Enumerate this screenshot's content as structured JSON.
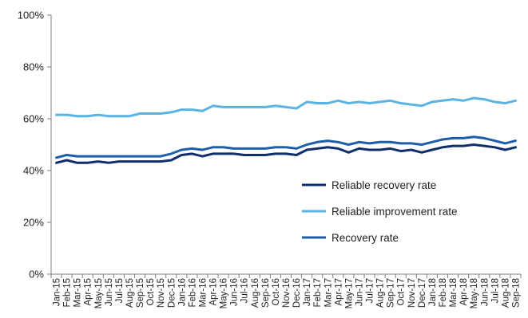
{
  "chart_data": {
    "type": "line",
    "title": "",
    "xlabel": "",
    "ylabel": "",
    "ylim": [
      0,
      100
    ],
    "y_ticks": [
      "0%",
      "20%",
      "40%",
      "60%",
      "80%",
      "100%"
    ],
    "y_tick_values": [
      0,
      20,
      40,
      60,
      80,
      100
    ],
    "grid": false,
    "legend_position": "right-center",
    "categories": [
      "Jan-15",
      "Feb-15",
      "Mar-15",
      "Apr-15",
      "May-15",
      "Jun-15",
      "Jul-15",
      "Aug-15",
      "Sep-15",
      "Oct-15",
      "Nov-15",
      "Dec-15",
      "Jan-16",
      "Feb-16",
      "Mar-16",
      "Apr-16",
      "May-16",
      "Jun-16",
      "Jul-16",
      "Aug-16",
      "Sep-16",
      "Oct-16",
      "Nov-16",
      "Dec-16",
      "Jan-17",
      "Feb-17",
      "Mar-17",
      "Apr-17",
      "May-17",
      "Jun-17",
      "Jul-17",
      "Aug-17",
      "Sep-17",
      "Oct-17",
      "Nov-17",
      "Dec-17",
      "Jan-18",
      "Feb-18",
      "Mar-18",
      "Apr-18",
      "May-18",
      "Jun-18",
      "Jul-18",
      "Aug-18",
      "Sep-18"
    ],
    "series": [
      {
        "name": "Reliable recovery rate",
        "color": "#0e2f6b",
        "values": [
          43,
          44,
          43,
          43,
          43.5,
          43,
          43.5,
          43.5,
          43.5,
          43.5,
          43.5,
          44,
          46,
          46.5,
          45.5,
          46.5,
          46.5,
          46.5,
          46,
          46,
          46,
          46.5,
          46.5,
          46,
          48,
          48.5,
          49,
          48.5,
          47,
          48.5,
          48,
          48,
          48.5,
          47.5,
          48,
          47,
          48,
          49,
          49.5,
          49.5,
          50,
          49.5,
          49,
          48,
          49
        ]
      },
      {
        "name": "Reliable improvement rate",
        "color": "#5bb3e4",
        "values": [
          61.5,
          61.5,
          61,
          61,
          61.5,
          61,
          61,
          61,
          62,
          62,
          62,
          62.5,
          63.5,
          63.5,
          63,
          65,
          64.5,
          64.5,
          64.5,
          64.5,
          64.5,
          65,
          64.5,
          64,
          66.5,
          66,
          66,
          67,
          66,
          66.5,
          66,
          66.5,
          67,
          66,
          65.5,
          65,
          66.5,
          67,
          67.5,
          67,
          68,
          67.5,
          66.5,
          66,
          67
        ]
      },
      {
        "name": "Recovery rate",
        "color": "#1e5ea8",
        "values": [
          45,
          46,
          45.5,
          45.5,
          45.5,
          45.5,
          45.5,
          45.5,
          45.5,
          45.5,
          45.5,
          46.5,
          48,
          48.5,
          48,
          49,
          49,
          48.5,
          48.5,
          48.5,
          48.5,
          49,
          49,
          48.5,
          50,
          51,
          51.5,
          51,
          50,
          51,
          50.5,
          51,
          51,
          50.5,
          50.5,
          50,
          51,
          52,
          52.5,
          52.5,
          53,
          52.5,
          51.5,
          50.5,
          51.5
        ]
      }
    ]
  }
}
